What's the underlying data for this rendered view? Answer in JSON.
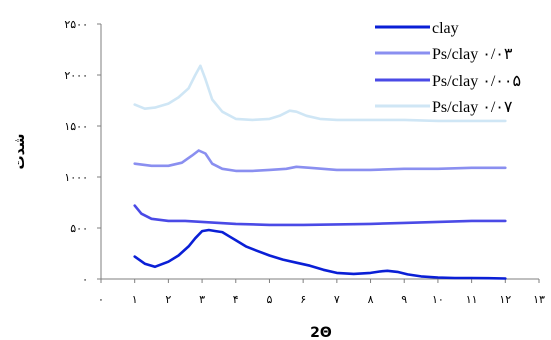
{
  "chart_data": {
    "type": "line",
    "title": "",
    "xlabel": "2Θ",
    "ylabel": "شدت",
    "xlim": [
      0,
      13
    ],
    "ylim": [
      0,
      2500
    ],
    "x_ticks": [
      0,
      1,
      2,
      3,
      4,
      5,
      6,
      7,
      8,
      9,
      10,
      11,
      12,
      13
    ],
    "x_tick_labels": [
      "۰",
      "۱",
      "۲",
      "۳",
      "۴",
      "۵",
      "۶",
      "۷",
      "۸",
      "۹",
      "۱۰",
      "۱۱",
      "۱۲",
      "۱۳"
    ],
    "y_ticks": [
      0,
      500,
      1000,
      1500,
      2000,
      2500
    ],
    "y_tick_labels": [
      "۰",
      "۵۰۰",
      "۱۰۰۰",
      "۱۵۰۰",
      "۲۰۰۰",
      "۲۵۰۰"
    ],
    "grid": false,
    "legend_position": "top-right",
    "series": [
      {
        "name": "clay",
        "color": "#0a1fd6",
        "x": [
          1,
          1.3,
          1.6,
          2,
          2.3,
          2.6,
          2.8,
          3,
          3.2,
          3.4,
          3.6,
          3.8,
          4,
          4.3,
          4.6,
          5,
          5.4,
          5.8,
          6.2,
          6.6,
          7,
          7.5,
          8,
          8.3,
          8.5,
          8.8,
          9.1,
          9.5,
          10,
          10.5,
          11,
          11.5,
          12
        ],
        "y": [
          220,
          150,
          120,
          170,
          230,
          320,
          400,
          470,
          480,
          470,
          460,
          420,
          380,
          320,
          280,
          230,
          190,
          160,
          130,
          90,
          60,
          50,
          60,
          75,
          80,
          70,
          45,
          25,
          15,
          10,
          10,
          8,
          5
        ]
      },
      {
        "name": "Ps/clay ۰/۰۳",
        "color": "#8a8ff0",
        "x": [
          1,
          1.5,
          2,
          2.4,
          2.7,
          2.9,
          3.1,
          3.3,
          3.6,
          4,
          4.5,
          5,
          5.5,
          5.8,
          6.2,
          7,
          8,
          9,
          10,
          11,
          12
        ],
        "y": [
          1130,
          1110,
          1110,
          1140,
          1210,
          1260,
          1230,
          1130,
          1080,
          1060,
          1060,
          1070,
          1080,
          1100,
          1090,
          1070,
          1070,
          1080,
          1080,
          1090,
          1090
        ]
      },
      {
        "name": "Ps/clay ۰/۰۰۵",
        "color": "#4a4ae6",
        "x": [
          1,
          1.2,
          1.5,
          2,
          2.5,
          3,
          3.5,
          4,
          5,
          6,
          7,
          8,
          9,
          10,
          11,
          12
        ],
        "y": [
          720,
          640,
          590,
          570,
          570,
          560,
          550,
          540,
          530,
          530,
          535,
          540,
          550,
          560,
          570,
          570
        ]
      },
      {
        "name": "Ps/clay ۰/۰۷",
        "color": "#cfe6f5",
        "x": [
          1,
          1.3,
          1.6,
          2,
          2.3,
          2.6,
          2.8,
          2.95,
          3.1,
          3.3,
          3.6,
          4,
          4.5,
          5,
          5.3,
          5.6,
          5.8,
          6.1,
          6.5,
          7,
          8,
          9,
          10,
          11,
          12
        ],
        "y": [
          1710,
          1670,
          1680,
          1720,
          1780,
          1870,
          2000,
          2090,
          1960,
          1760,
          1640,
          1570,
          1560,
          1570,
          1600,
          1650,
          1640,
          1600,
          1570,
          1560,
          1560,
          1560,
          1550,
          1550,
          1550
        ]
      }
    ]
  }
}
